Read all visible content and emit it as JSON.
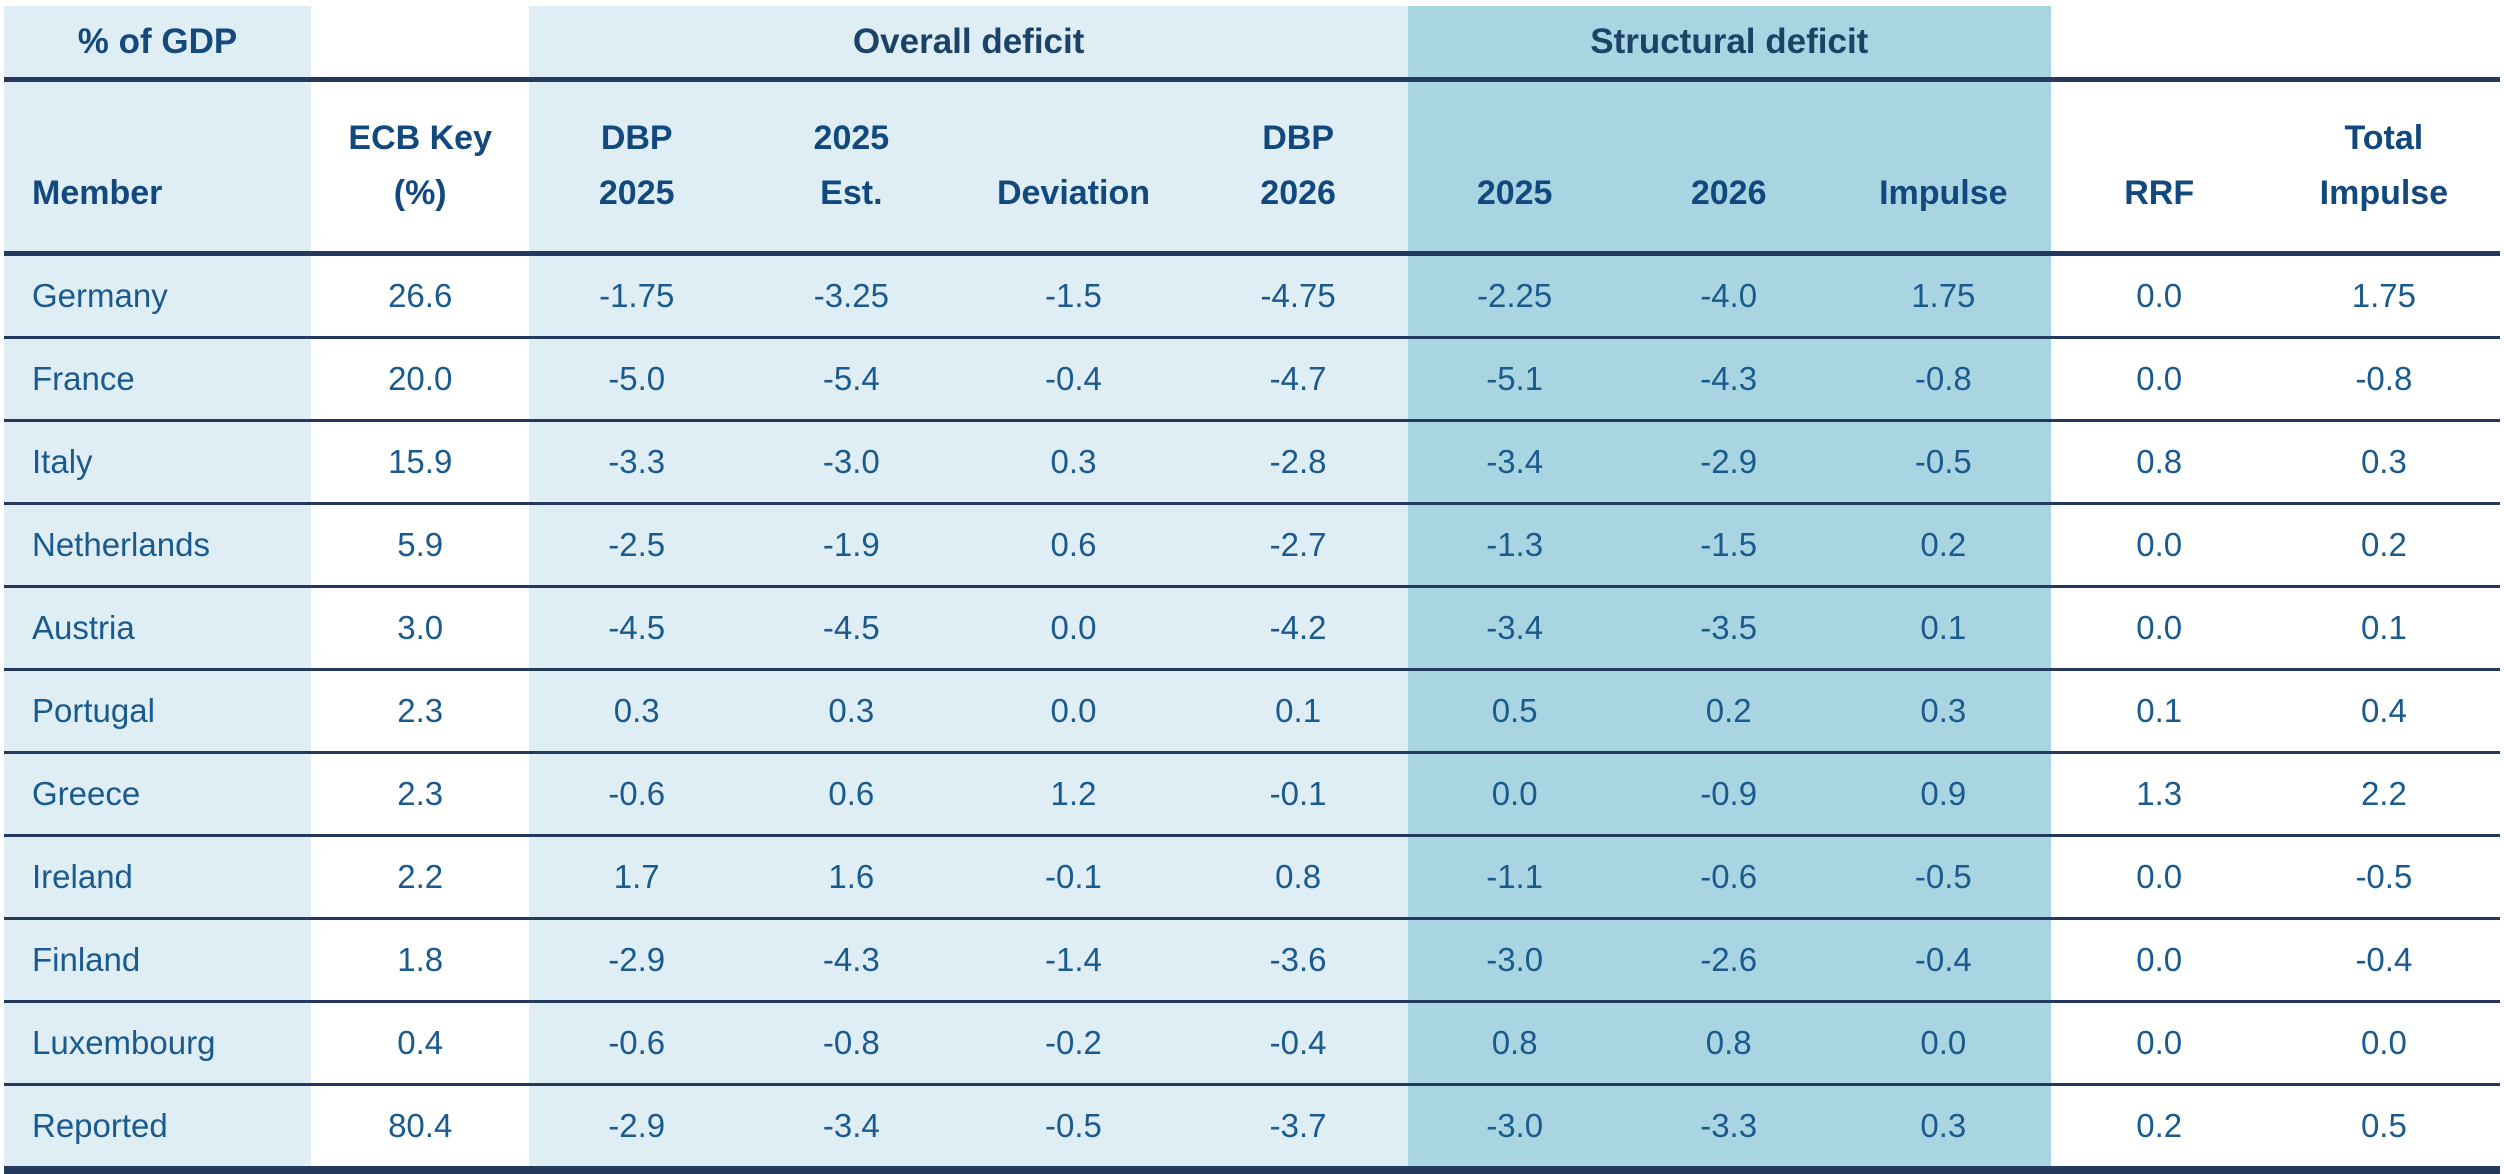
{
  "table": {
    "corner_label": "% of GDP",
    "groups": {
      "overall": "Overall deficit",
      "structural": "Structural deficit"
    },
    "columns": [
      {
        "id": "member",
        "label": "Member"
      },
      {
        "id": "ecb_key",
        "label": "ECB Key\n(%)"
      },
      {
        "id": "dbp_2025",
        "label": "DBP\n2025"
      },
      {
        "id": "est_2025",
        "label": "2025\nEst."
      },
      {
        "id": "deviation",
        "label": "Deviation"
      },
      {
        "id": "dbp_2026",
        "label": "DBP\n2026"
      },
      {
        "id": "struct_2025",
        "label": "2025"
      },
      {
        "id": "struct_2026",
        "label": "2026"
      },
      {
        "id": "impulse",
        "label": "Impulse"
      },
      {
        "id": "rrf",
        "label": "RRF"
      },
      {
        "id": "total_impulse",
        "label": "Total\nImpulse"
      }
    ],
    "rows": [
      {
        "member": "Germany",
        "values": [
          "26.6",
          "-1.75",
          "-3.25",
          "-1.5",
          "-4.75",
          "-2.25",
          "-4.0",
          "1.75",
          "0.0",
          "1.75"
        ]
      },
      {
        "member": "France",
        "values": [
          "20.0",
          "-5.0",
          "-5.4",
          "-0.4",
          "-4.7",
          "-5.1",
          "-4.3",
          "-0.8",
          "0.0",
          "-0.8"
        ]
      },
      {
        "member": "Italy",
        "values": [
          "15.9",
          "-3.3",
          "-3.0",
          "0.3",
          "-2.8",
          "-3.4",
          "-2.9",
          "-0.5",
          "0.8",
          "0.3"
        ]
      },
      {
        "member": "Netherlands",
        "values": [
          "5.9",
          "-2.5",
          "-1.9",
          "0.6",
          "-2.7",
          "-1.3",
          "-1.5",
          "0.2",
          "0.0",
          "0.2"
        ]
      },
      {
        "member": "Austria",
        "values": [
          "3.0",
          "-4.5",
          "-4.5",
          "0.0",
          "-4.2",
          "-3.4",
          "-3.5",
          "0.1",
          "0.0",
          "0.1"
        ]
      },
      {
        "member": "Portugal",
        "values": [
          "2.3",
          "0.3",
          "0.3",
          "0.0",
          "0.1",
          "0.5",
          "0.2",
          "0.3",
          "0.1",
          "0.4"
        ]
      },
      {
        "member": "Greece",
        "values": [
          "2.3",
          "-0.6",
          "0.6",
          "1.2",
          "-0.1",
          "0.0",
          "-0.9",
          "0.9",
          "1.3",
          "2.2"
        ]
      },
      {
        "member": "Ireland",
        "values": [
          "2.2",
          "1.7",
          "1.6",
          "-0.1",
          "0.8",
          "-1.1",
          "-0.6",
          "-0.5",
          "0.0",
          "-0.5"
        ]
      },
      {
        "member": "Finland",
        "values": [
          "1.8",
          "-2.9",
          "-4.3",
          "-1.4",
          "-3.6",
          "-3.0",
          "-2.6",
          "-0.4",
          "0.0",
          "-0.4"
        ]
      },
      {
        "member": "Luxembourg",
        "values": [
          "0.4",
          "-0.6",
          "-0.8",
          "-0.2",
          "-0.4",
          "0.8",
          "0.8",
          "0.0",
          "0.0",
          "0.0"
        ]
      },
      {
        "member": "Reported",
        "values": [
          "80.4",
          "-2.9",
          "-3.4",
          "-0.5",
          "-3.7",
          "-3.0",
          "-3.3",
          "0.3",
          "0.2",
          "0.5"
        ]
      }
    ]
  },
  "colors": {
    "light_blue_bg": "#DFEDF5",
    "mid_blue_bg": "#A9D5E3",
    "rule_navy": "#24395C",
    "header_text": "#11497F",
    "group_header_text": "#1C4266",
    "data_text": "#1A5A8C"
  }
}
